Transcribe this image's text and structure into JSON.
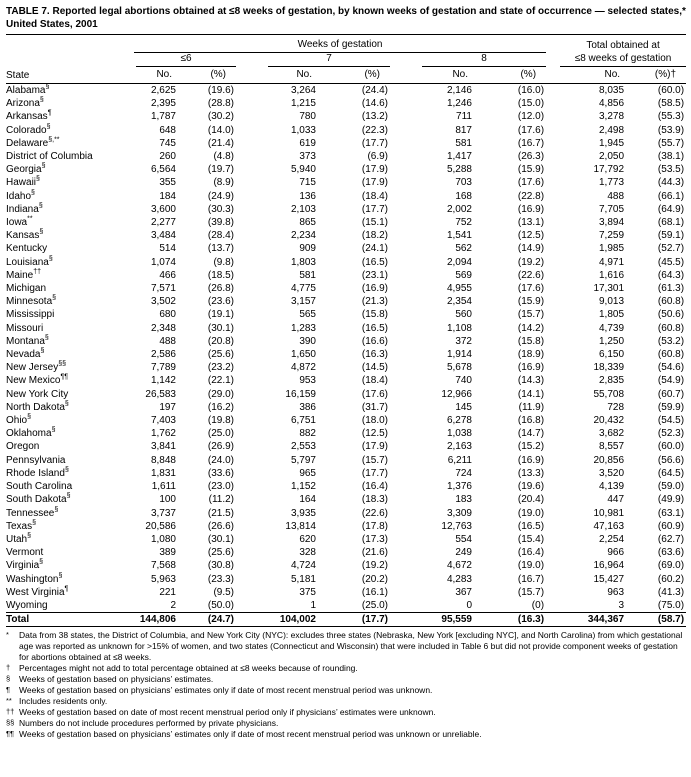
{
  "page": {
    "title": "TABLE 7. Reported legal abortions obtained at ≤8 weeks of gestation, by known weeks of gestation and state of occurrence — selected states,* United States, 2001"
  },
  "table": {
    "state_header": "State",
    "group_weeks": "Weeks of gestation",
    "group_total_line1": "Total obtained at",
    "group_total_line2": "≤8 weeks of gestation",
    "subgroups": [
      "≤6",
      "7",
      "8"
    ],
    "unit_headers": {
      "no": "No.",
      "pct": "(%)",
      "pct_total": "(%)†"
    },
    "rows": [
      {
        "state": "Alabama",
        "marker": "§",
        "values": [
          "2,625",
          "(19.6)",
          "3,264",
          "(24.4)",
          "2,146",
          "(16.0)",
          "8,035",
          "(60.0)"
        ]
      },
      {
        "state": "Arizona",
        "marker": "§",
        "values": [
          "2,395",
          "(28.8)",
          "1,215",
          "(14.6)",
          "1,246",
          "(15.0)",
          "4,856",
          "(58.5)"
        ]
      },
      {
        "state": "Arkansas",
        "marker": "¶",
        "values": [
          "1,787",
          "(30.2)",
          "780",
          "(13.2)",
          "711",
          "(12.0)",
          "3,278",
          "(55.3)"
        ]
      },
      {
        "state": "Colorado",
        "marker": "§",
        "values": [
          "648",
          "(14.0)",
          "1,033",
          "(22.3)",
          "817",
          "(17.6)",
          "2,498",
          "(53.9)"
        ]
      },
      {
        "state": "Delaware",
        "marker": "§,**",
        "values": [
          "745",
          "(21.4)",
          "619",
          "(17.7)",
          "581",
          "(16.7)",
          "1,945",
          "(55.7)"
        ]
      },
      {
        "state": "District of Columbia",
        "marker": "",
        "values": [
          "260",
          "(4.8)",
          "373",
          "(6.9)",
          "1,417",
          "(26.3)",
          "2,050",
          "(38.1)"
        ]
      },
      {
        "state": "Georgia",
        "marker": "§",
        "values": [
          "6,564",
          "(19.7)",
          "5,940",
          "(17.9)",
          "5,288",
          "(15.9)",
          "17,792",
          "(53.5)"
        ]
      },
      {
        "state": "Hawaii",
        "marker": "§",
        "values": [
          "355",
          "(8.9)",
          "715",
          "(17.9)",
          "703",
          "(17.6)",
          "1,773",
          "(44.3)"
        ]
      },
      {
        "state": "Idaho",
        "marker": "§",
        "values": [
          "184",
          "(24.9)",
          "136",
          "(18.4)",
          "168",
          "(22.8)",
          "488",
          "(66.1)"
        ]
      },
      {
        "state": "Indiana",
        "marker": "§",
        "values": [
          "3,600",
          "(30.3)",
          "2,103",
          "(17.7)",
          "2,002",
          "(16.9)",
          "7,705",
          "(64.9)"
        ]
      },
      {
        "state": "Iowa",
        "marker": "**",
        "values": [
          "2,277",
          "(39.8)",
          "865",
          "(15.1)",
          "752",
          "(13.1)",
          "3,894",
          "(68.1)"
        ]
      },
      {
        "state": "Kansas",
        "marker": "§",
        "values": [
          "3,484",
          "(28.4)",
          "2,234",
          "(18.2)",
          "1,541",
          "(12.5)",
          "7,259",
          "(59.1)"
        ]
      },
      {
        "state": "Kentucky",
        "marker": "",
        "values": [
          "514",
          "(13.7)",
          "909",
          "(24.1)",
          "562",
          "(14.9)",
          "1,985",
          "(52.7)"
        ]
      },
      {
        "state": "Louisiana",
        "marker": "§",
        "values": [
          "1,074",
          "(9.8)",
          "1,803",
          "(16.5)",
          "2,094",
          "(19.2)",
          "4,971",
          "(45.5)"
        ]
      },
      {
        "state": "Maine",
        "marker": "††",
        "values": [
          "466",
          "(18.5)",
          "581",
          "(23.1)",
          "569",
          "(22.6)",
          "1,616",
          "(64.3)"
        ]
      },
      {
        "state": "Michigan",
        "marker": "",
        "values": [
          "7,571",
          "(26.8)",
          "4,775",
          "(16.9)",
          "4,955",
          "(17.6)",
          "17,301",
          "(61.3)"
        ]
      },
      {
        "state": "Minnesota",
        "marker": "§",
        "values": [
          "3,502",
          "(23.6)",
          "3,157",
          "(21.3)",
          "2,354",
          "(15.9)",
          "9,013",
          "(60.8)"
        ]
      },
      {
        "state": "Mississippi",
        "marker": "",
        "values": [
          "680",
          "(19.1)",
          "565",
          "(15.8)",
          "560",
          "(15.7)",
          "1,805",
          "(50.6)"
        ]
      },
      {
        "state": "Missouri",
        "marker": "",
        "values": [
          "2,348",
          "(30.1)",
          "1,283",
          "(16.5)",
          "1,108",
          "(14.2)",
          "4,739",
          "(60.8)"
        ]
      },
      {
        "state": "Montana",
        "marker": "§",
        "values": [
          "488",
          "(20.8)",
          "390",
          "(16.6)",
          "372",
          "(15.8)",
          "1,250",
          "(53.2)"
        ]
      },
      {
        "state": "Nevada",
        "marker": "§",
        "values": [
          "2,586",
          "(25.6)",
          "1,650",
          "(16.3)",
          "1,914",
          "(18.9)",
          "6,150",
          "(60.8)"
        ]
      },
      {
        "state": "New Jersey",
        "marker": "§§",
        "values": [
          "7,789",
          "(23.2)",
          "4,872",
          "(14.5)",
          "5,678",
          "(16.9)",
          "18,339",
          "(54.6)"
        ]
      },
      {
        "state": "New Mexico",
        "marker": "¶¶",
        "values": [
          "1,142",
          "(22.1)",
          "953",
          "(18.4)",
          "740",
          "(14.3)",
          "2,835",
          "(54.9)"
        ]
      },
      {
        "state": "New York City",
        "marker": "",
        "values": [
          "26,583",
          "(29.0)",
          "16,159",
          "(17.6)",
          "12,966",
          "(14.1)",
          "55,708",
          "(60.7)"
        ]
      },
      {
        "state": "North Dakota",
        "marker": "§",
        "values": [
          "197",
          "(16.2)",
          "386",
          "(31.7)",
          "145",
          "(11.9)",
          "728",
          "(59.9)"
        ]
      },
      {
        "state": "Ohio",
        "marker": "§",
        "values": [
          "7,403",
          "(19.8)",
          "6,751",
          "(18.0)",
          "6,278",
          "(16.8)",
          "20,432",
          "(54.5)"
        ]
      },
      {
        "state": "Oklahoma",
        "marker": "§",
        "values": [
          "1,762",
          "(25.0)",
          "882",
          "(12.5)",
          "1,038",
          "(14.7)",
          "3,682",
          "(52.3)"
        ]
      },
      {
        "state": "Oregon",
        "marker": "",
        "values": [
          "3,841",
          "(26.9)",
          "2,553",
          "(17.9)",
          "2,163",
          "(15.2)",
          "8,557",
          "(60.0)"
        ]
      },
      {
        "state": "Pennsylvania",
        "marker": "",
        "values": [
          "8,848",
          "(24.0)",
          "5,797",
          "(15.7)",
          "6,211",
          "(16.9)",
          "20,856",
          "(56.6)"
        ]
      },
      {
        "state": "Rhode Island",
        "marker": "§",
        "values": [
          "1,831",
          "(33.6)",
          "965",
          "(17.7)",
          "724",
          "(13.3)",
          "3,520",
          "(64.5)"
        ]
      },
      {
        "state": "South Carolina",
        "marker": "",
        "values": [
          "1,611",
          "(23.0)",
          "1,152",
          "(16.4)",
          "1,376",
          "(19.6)",
          "4,139",
          "(59.0)"
        ]
      },
      {
        "state": "South Dakota",
        "marker": "§",
        "values": [
          "100",
          "(11.2)",
          "164",
          "(18.3)",
          "183",
          "(20.4)",
          "447",
          "(49.9)"
        ]
      },
      {
        "state": "Tennessee",
        "marker": "§",
        "values": [
          "3,737",
          "(21.5)",
          "3,935",
          "(22.6)",
          "3,309",
          "(19.0)",
          "10,981",
          "(63.1)"
        ]
      },
      {
        "state": "Texas",
        "marker": "§",
        "values": [
          "20,586",
          "(26.6)",
          "13,814",
          "(17.8)",
          "12,763",
          "(16.5)",
          "47,163",
          "(60.9)"
        ]
      },
      {
        "state": "Utah",
        "marker": "§",
        "values": [
          "1,080",
          "(30.1)",
          "620",
          "(17.3)",
          "554",
          "(15.4)",
          "2,254",
          "(62.7)"
        ]
      },
      {
        "state": "Vermont",
        "marker": "",
        "values": [
          "389",
          "(25.6)",
          "328",
          "(21.6)",
          "249",
          "(16.4)",
          "966",
          "(63.6)"
        ]
      },
      {
        "state": "Virginia",
        "marker": "§",
        "values": [
          "7,568",
          "(30.8)",
          "4,724",
          "(19.2)",
          "4,672",
          "(19.0)",
          "16,964",
          "(69.0)"
        ]
      },
      {
        "state": "Washington",
        "marker": "§",
        "values": [
          "5,963",
          "(23.3)",
          "5,181",
          "(20.2)",
          "4,283",
          "(16.7)",
          "15,427",
          "(60.2)"
        ]
      },
      {
        "state": "West Virginia",
        "marker": "¶",
        "values": [
          "221",
          "(9.5)",
          "375",
          "(16.1)",
          "367",
          "(15.7)",
          "963",
          "(41.3)"
        ]
      },
      {
        "state": "Wyoming",
        "marker": "",
        "values": [
          "2",
          "(50.0)",
          "1",
          "(25.0)",
          "0",
          "(0)",
          "3",
          "(75.0)"
        ]
      }
    ],
    "total_row": {
      "state": "Total",
      "marker": "",
      "values": [
        "144,806",
        "(24.7)",
        "104,002",
        "(17.7)",
        "95,559",
        "(16.3)",
        "344,367",
        "(58.7)"
      ]
    },
    "footnotes": [
      {
        "marker": "*",
        "text": "Data from 38 states, the District of Columbia, and New York City (NYC): excludes three states (Nebraska, New York [excluding NYC], and North Carolina) from which gestational age was reported as unknown for >15% of women, and two states (Connecticut and Wisconsin) that were included in Table 6 but did not provide component weeks of gestation for abortions obtained at ≤8 weeks."
      },
      {
        "marker": "†",
        "text": "Percentages might not add to total percentage obtained at ≤8 weeks because of rounding."
      },
      {
        "marker": "§",
        "text": "Weeks of gestation based on physicians’ estimates."
      },
      {
        "marker": "¶",
        "text": "Weeks of gestation based on physicians’ estimates only if date of most recent menstrual period was unknown."
      },
      {
        "marker": "**",
        "text": "Includes residents only."
      },
      {
        "marker": "††",
        "text": "Weeks of gestation based on date of most recent menstrual period only if physicians’ estimates were unknown."
      },
      {
        "marker": "§§",
        "text": "Numbers do not include procedures performed by private physicians."
      },
      {
        "marker": "¶¶",
        "text": "Weeks of gestation based on physicians’ estimates only if date of most recent menstrual period was unknown or unreliable."
      }
    ]
  }
}
